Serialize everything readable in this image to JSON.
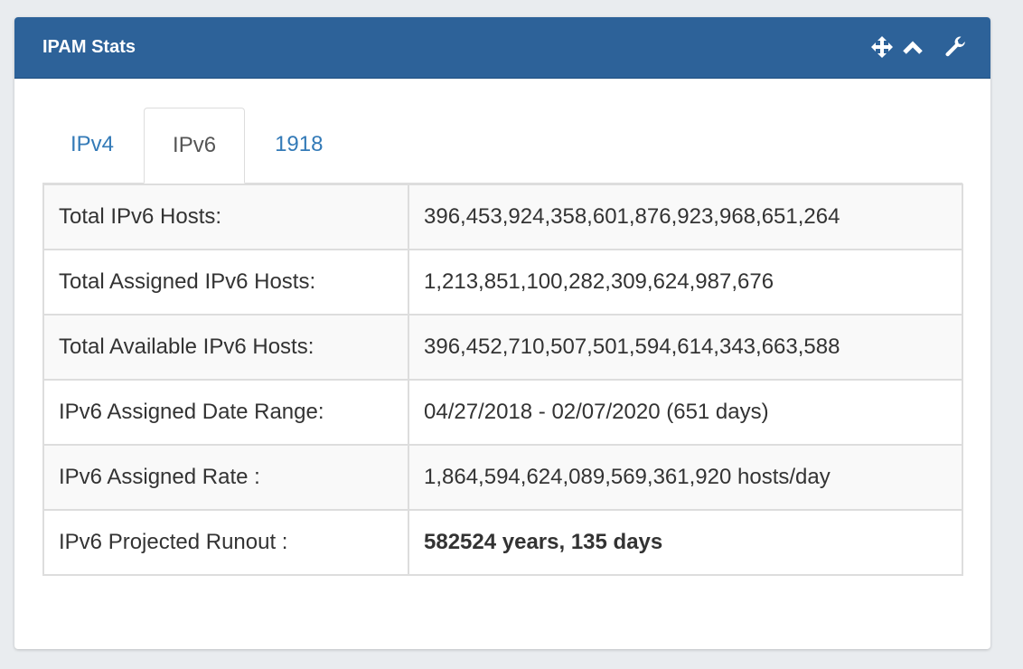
{
  "panel": {
    "title": "IPAM Stats",
    "icons": [
      "move-icon",
      "chevron-up-icon",
      "wrench-icon"
    ],
    "accent_color": "#2d6299"
  },
  "tabs": [
    {
      "label": "IPv4",
      "active": false
    },
    {
      "label": "IPv6",
      "active": true
    },
    {
      "label": "1918",
      "active": false
    }
  ],
  "stats": [
    {
      "label": "Total IPv6 Hosts:",
      "value": "396,453,924,358,601,876,923,968,651,264"
    },
    {
      "label": "Total Assigned IPv6 Hosts:",
      "value": "1,213,851,100,282,309,624,987,676"
    },
    {
      "label": "Total Available IPv6 Hosts:",
      "value": "396,452,710,507,501,594,614,343,663,588"
    },
    {
      "label": "IPv6 Assigned Date Range:",
      "value": "04/27/2018 - 02/07/2020 (651 days)"
    },
    {
      "label": "IPv6 Assigned Rate :",
      "value": "1,864,594,624,089,569,361,920 hosts/day"
    },
    {
      "label": "IPv6 Projected Runout :",
      "value": "582524 years, 135 days"
    }
  ]
}
